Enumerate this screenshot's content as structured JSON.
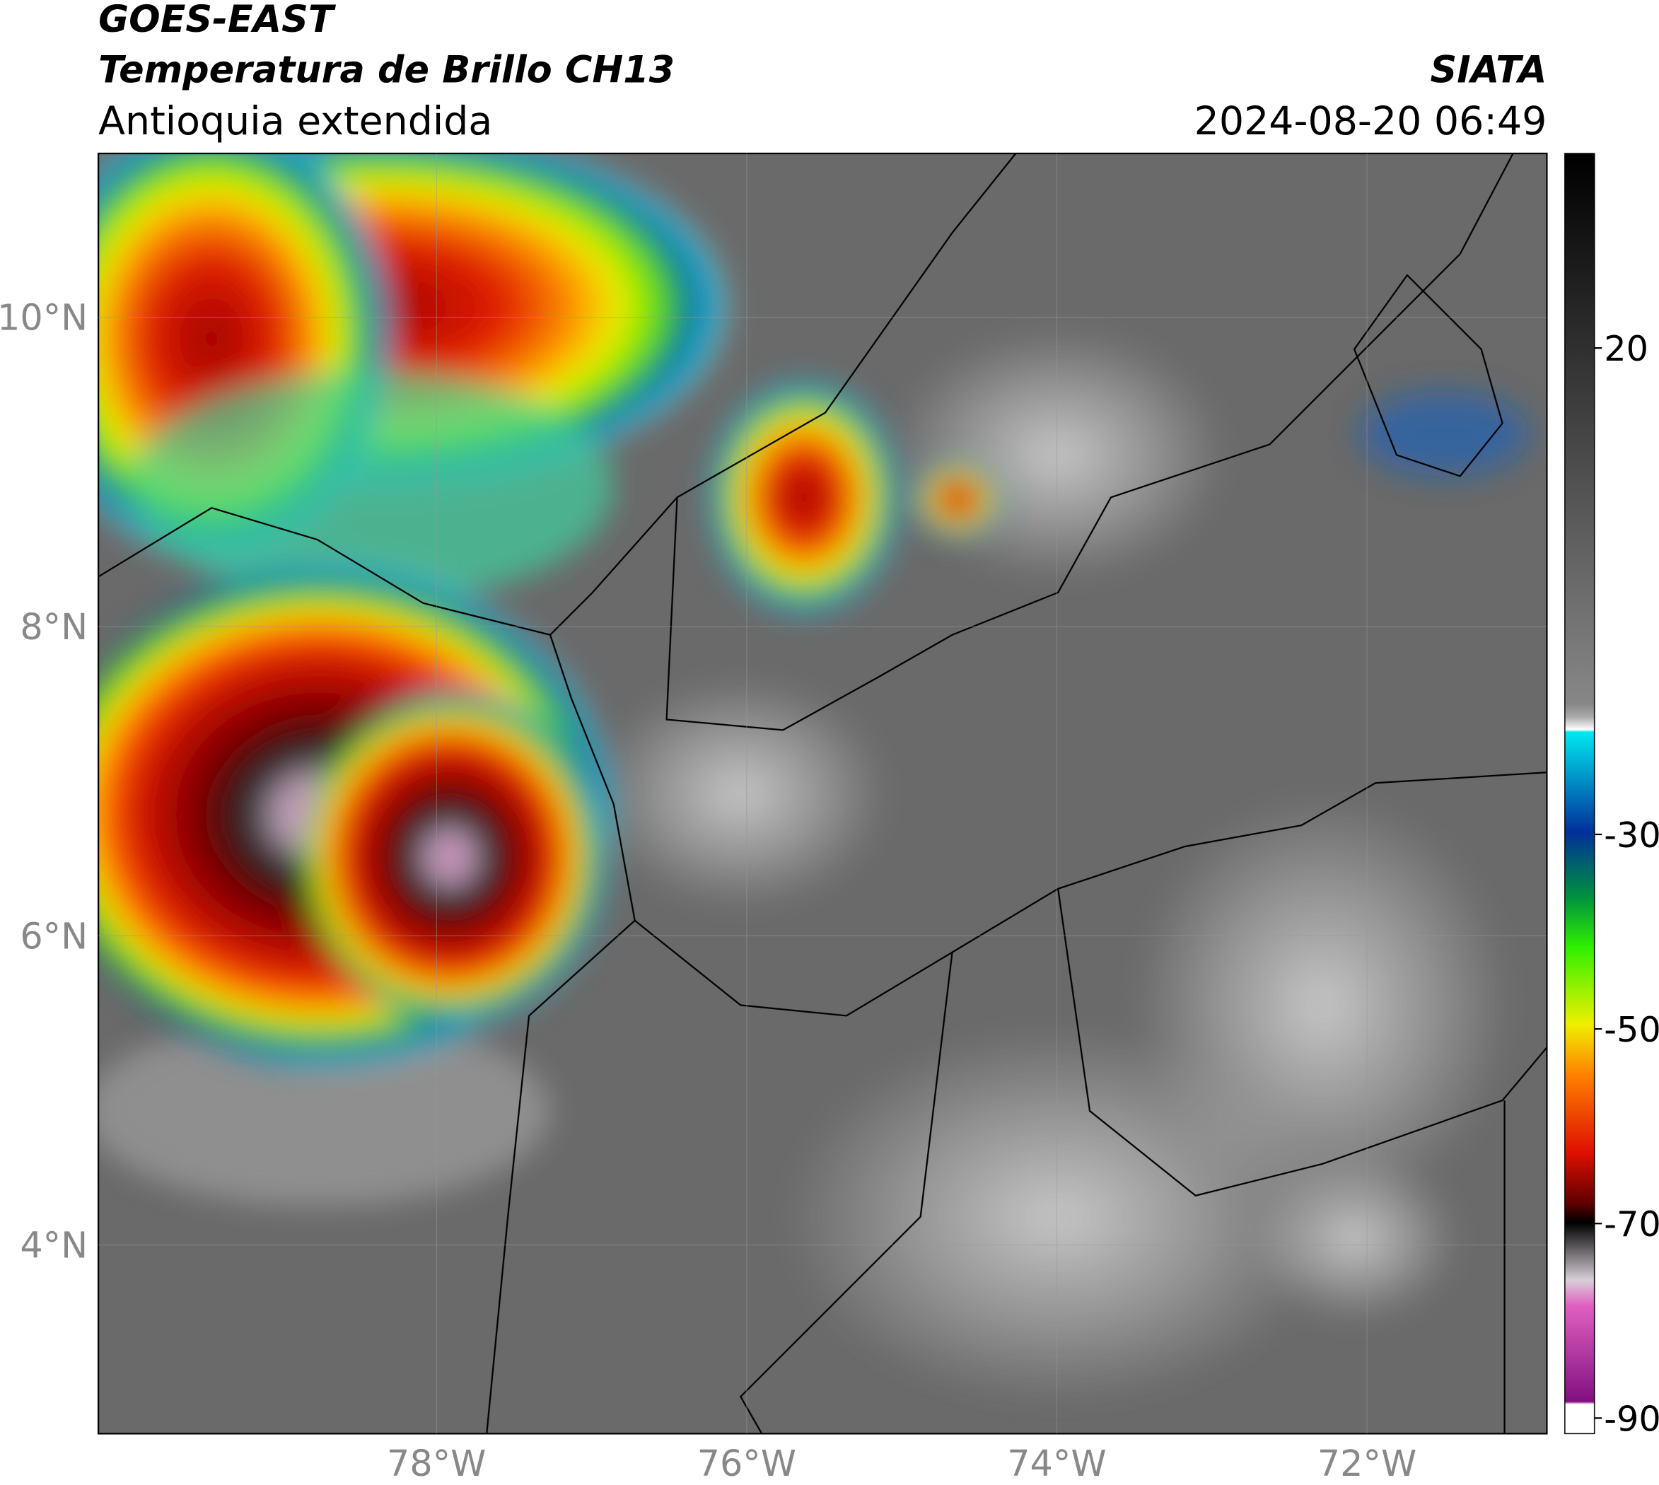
{
  "header": {
    "title": "GOES-EAST",
    "subtitle": "Temperatura de Brillo CH13",
    "region": "Antioquia extendida",
    "source": "SIATA",
    "datetime": "2024-08-20 06:49"
  },
  "map": {
    "lat_range": [
      2.78,
      11.06
    ],
    "lon_range": [
      -80.18,
      -70.84
    ],
    "lat_ticks": [
      {
        "value": 10,
        "label": "10°N"
      },
      {
        "value": 8,
        "label": "8°N"
      },
      {
        "value": 6,
        "label": "6°N"
      },
      {
        "value": 4,
        "label": "4°N"
      }
    ],
    "lon_ticks": [
      {
        "value": -78,
        "label": "78°W"
      },
      {
        "value": -76,
        "label": "76°W"
      },
      {
        "value": -74,
        "label": "74°W"
      },
      {
        "value": -72,
        "label": "72°W"
      }
    ]
  },
  "colorbar": {
    "range": [
      -91.6,
      40
    ],
    "ticks": [
      20,
      -30,
      -50,
      -70,
      -90
    ]
  }
}
